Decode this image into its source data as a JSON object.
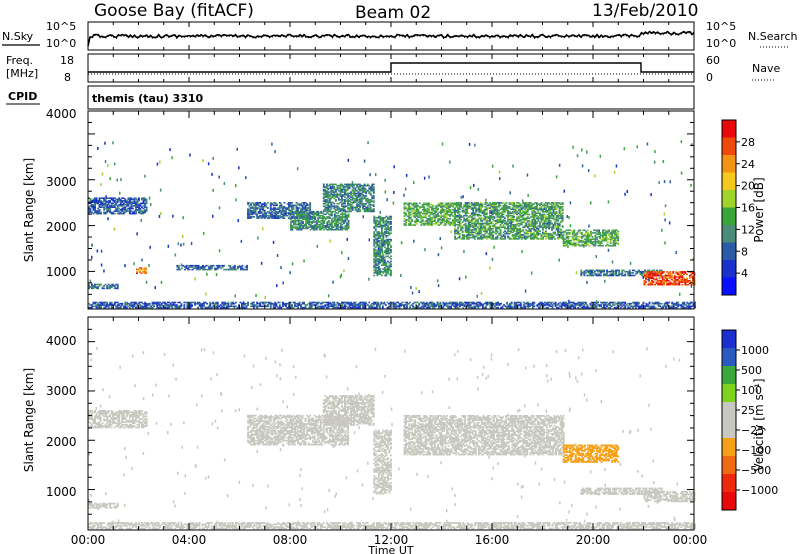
{
  "header": {
    "station": "Goose Bay (fitACF)",
    "beam": "Beam 02",
    "date": "13/Feb/2010"
  },
  "status_panels": {
    "nsky_label": "N.Sky",
    "nsearch_label": "N.Search",
    "freq_label_1": "Freq.",
    "freq_label_2": "[MHz]",
    "nave_label": "Nave",
    "cpid_label": "CPID",
    "cpid_value": "themis (tau) 3310",
    "noise_ticks": [
      "10^5",
      "10^0"
    ],
    "freq_ticks": [
      "18",
      "8"
    ],
    "nave_ticks": [
      "60",
      "0"
    ]
  },
  "chart_data": [
    {
      "type": "heatmap",
      "name": "power",
      "ylabel": "Slant Range [km]",
      "xlabel": "",
      "xlim": [
        0,
        24
      ],
      "ylim": [
        180,
        4500
      ],
      "yticks": [
        "4000",
        "3000",
        "2000",
        "1000"
      ],
      "colorbar_label": "Power [dB]",
      "colorbar_ticks": [
        "28",
        "24",
        "20",
        "16",
        "12",
        "8",
        "4"
      ],
      "colorbar_colors": [
        "#e8080a",
        "#f04a0a",
        "#f39415",
        "#f5c81e",
        "#a0d42a",
        "#3aa63a",
        "#4a8c78",
        "#2c5aa6",
        "#1a32cc",
        "#0a10ff"
      ],
      "colorbar_range": [
        0,
        30
      ],
      "regions": [
        {
          "t0": 0.0,
          "t1": 2.3,
          "r0": 2250,
          "r1": 2600,
          "level": 7
        },
        {
          "t0": 0.0,
          "t1": 1.2,
          "r0": 620,
          "r1": 720,
          "level": 9
        },
        {
          "t0": 1.9,
          "t1": 2.3,
          "r0": 950,
          "r1": 1080,
          "level": 24
        },
        {
          "t0": 3.5,
          "t1": 6.3,
          "r0": 1030,
          "r1": 1120,
          "level": 8
        },
        {
          "t0": 6.3,
          "t1": 8.8,
          "r0": 2150,
          "r1": 2500,
          "level": 8
        },
        {
          "t0": 8.0,
          "t1": 10.3,
          "r0": 1900,
          "r1": 2300,
          "level": 11
        },
        {
          "t0": 9.3,
          "t1": 11.3,
          "r0": 2300,
          "r1": 2900,
          "level": 10
        },
        {
          "t0": 11.3,
          "t1": 12.0,
          "r0": 900,
          "r1": 2200,
          "level": 11
        },
        {
          "t0": 12.5,
          "t1": 14.5,
          "r0": 2000,
          "r1": 2500,
          "level": 13
        },
        {
          "t0": 14.5,
          "t1": 18.8,
          "r0": 1700,
          "r1": 2500,
          "level": 12
        },
        {
          "t0": 18.8,
          "t1": 21.0,
          "r0": 1550,
          "r1": 1900,
          "level": 13
        },
        {
          "t0": 19.5,
          "t1": 22.7,
          "r0": 900,
          "r1": 1020,
          "level": 9
        },
        {
          "t0": 22.0,
          "t1": 24.0,
          "r0": 700,
          "r1": 1000,
          "level": 26
        },
        {
          "t0": 0.0,
          "t1": 24.0,
          "r0": 200,
          "r1": 320,
          "level": 7
        }
      ]
    },
    {
      "type": "heatmap",
      "name": "velocity",
      "ylabel": "Slant Range [km]",
      "xlabel": "Time UT",
      "xlim": [
        0,
        24
      ],
      "ylim": [
        180,
        4500
      ],
      "xticks": [
        "00:00",
        "04:00",
        "08:00",
        "12:00",
        "16:00",
        "20:00",
        "00:00"
      ],
      "yticks": [
        "4000",
        "3000",
        "2000",
        "1000"
      ],
      "colorbar_label": "Velocity [m s⁻¹]",
      "colorbar_ticks": [
        "1000",
        "500",
        "100",
        "25",
        "−25",
        "−100",
        "−500",
        "−1000"
      ],
      "colorbar_colors": [
        "#1c2fd0",
        "#2a5ac0",
        "#3aa83a",
        "#7ed321",
        "#c8c8c0",
        "#c8c8c0",
        "#f5a017",
        "#f06a12",
        "#ee2a0c",
        "#e80a0a"
      ],
      "colorbar_range": [
        -1000,
        1000
      ],
      "regions": [
        {
          "t0": 0.0,
          "t1": 2.3,
          "r0": 2250,
          "r1": 2600,
          "level": 0
        },
        {
          "t0": 0.0,
          "t1": 1.2,
          "r0": 620,
          "r1": 720,
          "level": 150
        },
        {
          "t0": 6.3,
          "t1": 10.3,
          "r0": 1900,
          "r1": 2500,
          "level": 0
        },
        {
          "t0": 9.3,
          "t1": 11.3,
          "r0": 2300,
          "r1": 2900,
          "level": 0
        },
        {
          "t0": 11.3,
          "t1": 12.0,
          "r0": 900,
          "r1": 2200,
          "level": 150
        },
        {
          "t0": 12.5,
          "t1": 18.8,
          "r0": 1700,
          "r1": 2500,
          "level": 0
        },
        {
          "t0": 18.8,
          "t1": 21.0,
          "r0": 1550,
          "r1": 1900,
          "level": -300
        },
        {
          "t0": 19.5,
          "t1": 22.7,
          "r0": 900,
          "r1": 1020,
          "level": -150
        },
        {
          "t0": 22.0,
          "t1": 24.0,
          "r0": 750,
          "r1": 950,
          "level": 0
        },
        {
          "t0": 0.0,
          "t1": 24.0,
          "r0": 200,
          "r1": 320,
          "level": -150
        }
      ]
    }
  ]
}
